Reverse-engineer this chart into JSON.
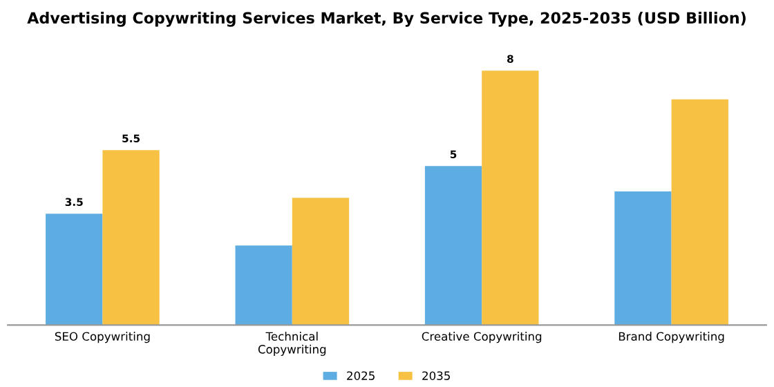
{
  "chart_data": {
    "type": "bar",
    "title": "Advertising Copywriting Services Market, By Service Type, 2025-2035 (USD Billion)",
    "categories": [
      "SEO Copywriting",
      "Technical\nCopywriting",
      "Creative Copywriting",
      "Brand Copywriting"
    ],
    "series": [
      {
        "name": "2025",
        "color": "#5dade2",
        "values": [
          3.5,
          2.5,
          5,
          4.2
        ],
        "value_labels": [
          "3.5",
          null,
          "5",
          null
        ]
      },
      {
        "name": "2035",
        "color": "#f7c244",
        "values": [
          5.5,
          4.0,
          8,
          7.1
        ],
        "value_labels": [
          "5.5",
          null,
          "8",
          null
        ]
      }
    ],
    "legend": "bottom",
    "grid": false
  }
}
